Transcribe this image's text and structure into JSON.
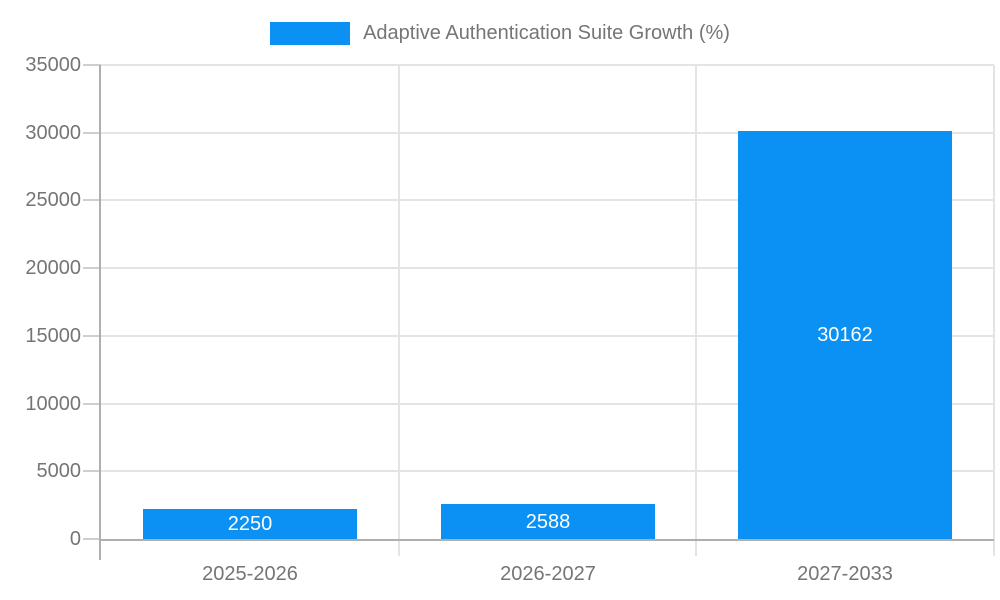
{
  "legend": {
    "label": "Adaptive Authentication Suite Growth (%)"
  },
  "chart_data": {
    "type": "bar",
    "title": "Adaptive Authentication Suite Growth (%)",
    "categories": [
      "2025-2026",
      "2026-2027",
      "2027-2033"
    ],
    "series": [
      {
        "name": "Adaptive Authentication Suite Growth (%)",
        "values": [
          2250,
          2588,
          30162
        ]
      }
    ],
    "bar_labels": [
      "2250",
      "2588",
      "30162"
    ],
    "xlabel": "",
    "ylabel": "",
    "ylim": [
      0,
      35000
    ],
    "ytick_step": 5000,
    "ytick_labels": [
      "0",
      "5000",
      "10000",
      "15000",
      "20000",
      "25000",
      "30000",
      "35000"
    ],
    "grid": true,
    "legend_position": "top",
    "colors": {
      "bar": "#0a91f3",
      "axis": "#afafaf",
      "gridline": "#e4e4e4",
      "tick": "#cfcfcf",
      "tick_text": "#757575",
      "bar_label_text": "#ffffff",
      "background": "#ffffff"
    }
  }
}
